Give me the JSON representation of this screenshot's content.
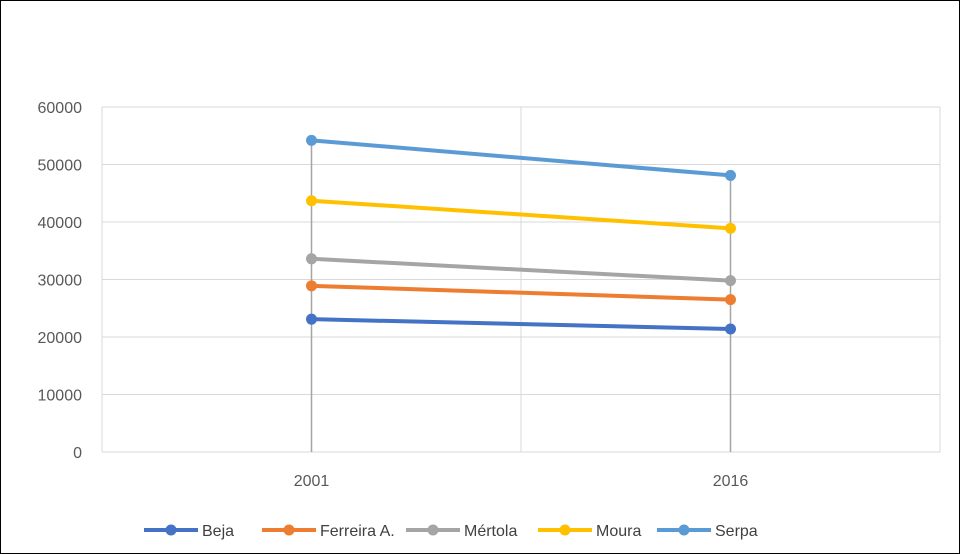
{
  "chart_data": {
    "type": "line",
    "x": [
      "2001",
      "2016"
    ],
    "ylim": [
      0,
      60000
    ],
    "y_ticks": [
      "0",
      "10000",
      "20000",
      "30000",
      "40000",
      "50000",
      "60000"
    ],
    "grid": true,
    "legend_position": "bottom",
    "title": "",
    "xlabel": "",
    "ylabel": "",
    "series": [
      {
        "name": "Beja",
        "values": [
          23100,
          21400
        ],
        "color": "#4472C4"
      },
      {
        "name": "Ferreira A.",
        "values": [
          28900,
          26500
        ],
        "color": "#ED7D31"
      },
      {
        "name": "Mértola",
        "values": [
          33600,
          29800
        ],
        "color": "#A5A5A5"
      },
      {
        "name": "Moura",
        "values": [
          43700,
          38900
        ],
        "color": "#FFC000"
      },
      {
        "name": "Serpa",
        "values": [
          54200,
          48100
        ],
        "color": "#5B9BD5"
      }
    ],
    "drop_line_color": "#A5A5A5",
    "grid_color": "#D9D9D9",
    "axis_color": "#D9D9D9"
  }
}
